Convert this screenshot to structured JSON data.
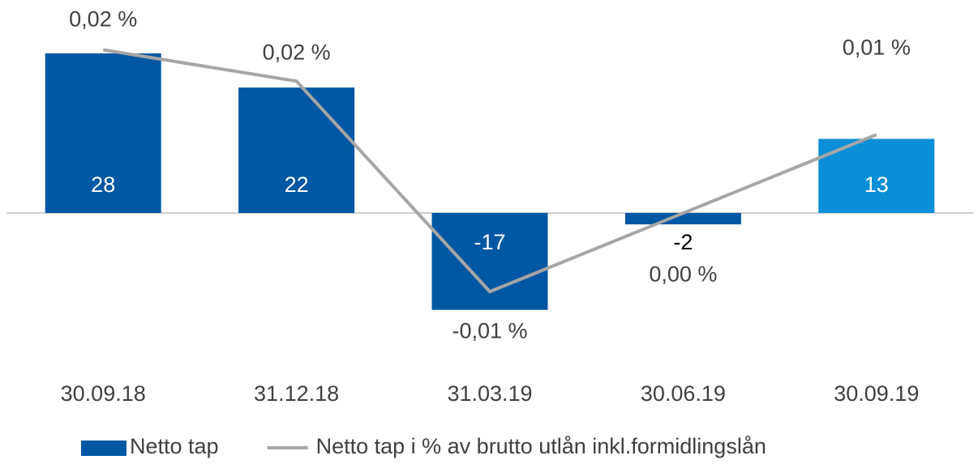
{
  "chart_data": {
    "type": "bar-line",
    "categories": [
      "30.09.18",
      "31.12.18",
      "31.03.19",
      "30.06.19",
      "30.09.19"
    ],
    "series": [
      {
        "name": "Netto tap",
        "type": "bar",
        "color": "#0057a3",
        "colors": [
          "#0057a3",
          "#0057a3",
          "#0057a3",
          "#0057a3",
          "#0a8fd8"
        ],
        "values": [
          28,
          22,
          -17,
          -2,
          13
        ]
      },
      {
        "name": "Netto tap i % av brutto utlån inkl.formidlingslån",
        "type": "line",
        "axis": "y2",
        "color": "#a6a6a6",
        "values": [
          0.0208,
          0.0168,
          -0.01,
          0.0,
          0.01
        ],
        "value_labels": [
          "0,02 %",
          "0,02 %",
          "-0,01 %",
          "0,00 %",
          "0,01 %"
        ]
      }
    ],
    "ylim": [
      -20,
      30
    ],
    "y2lim": [
      -0.0145,
      0.0218
    ]
  }
}
